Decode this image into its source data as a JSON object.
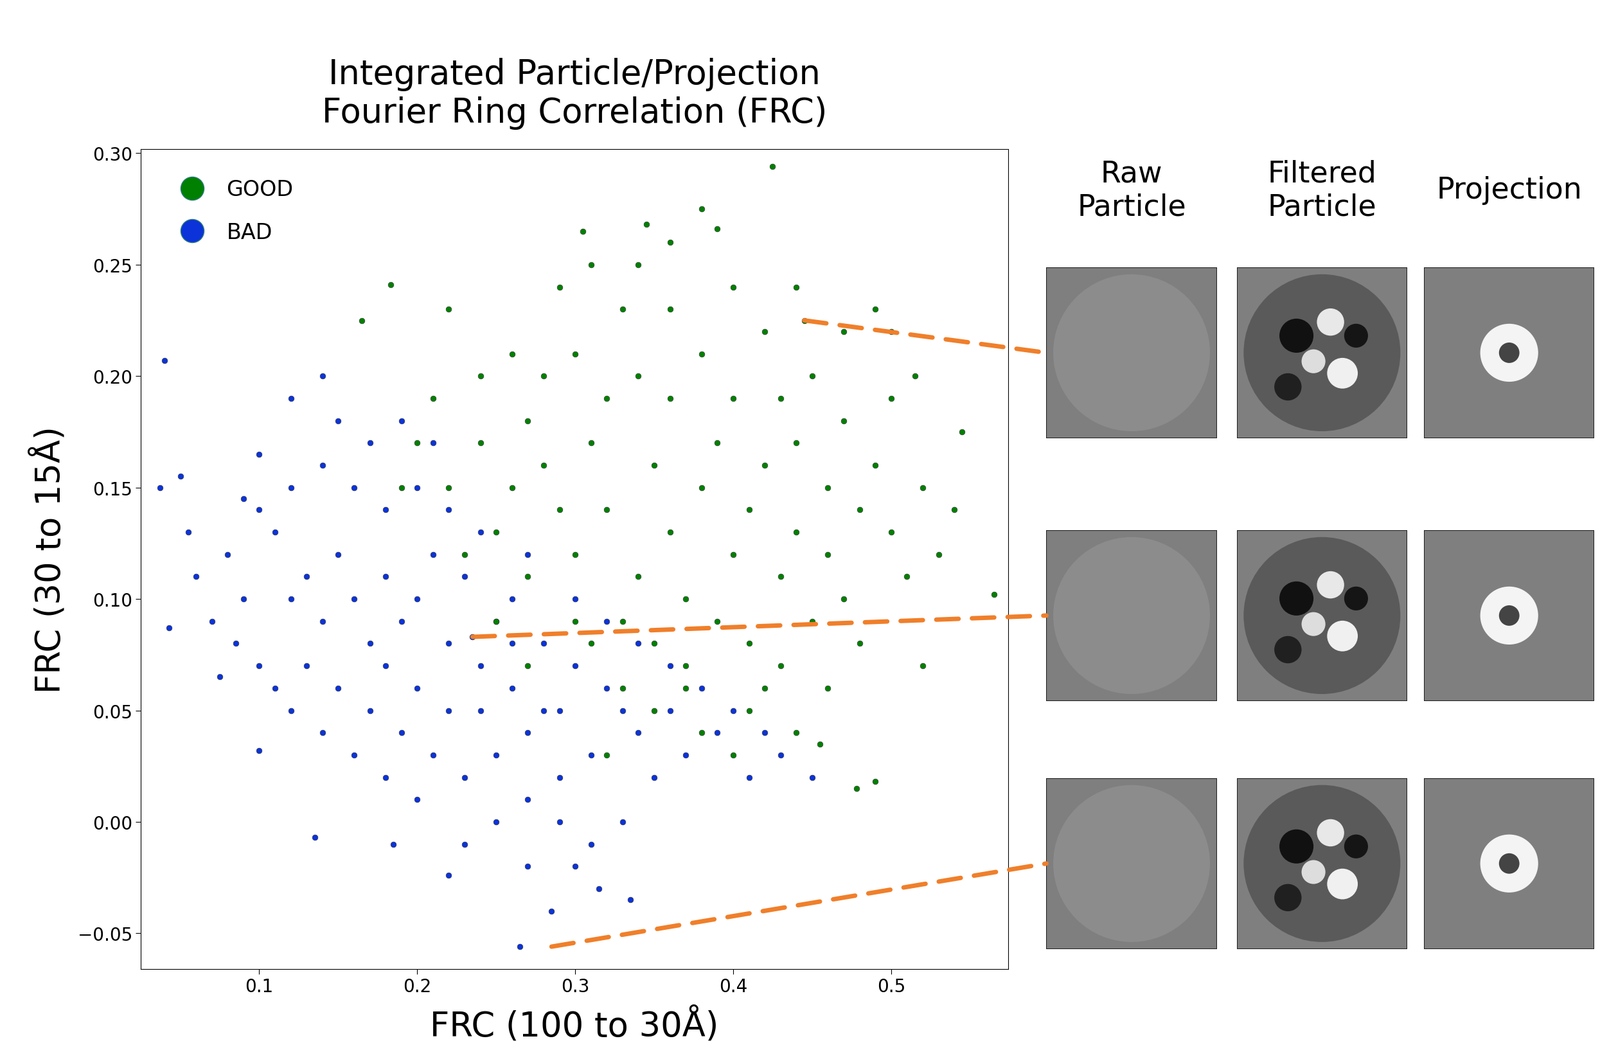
{
  "chart_data": {
    "type": "scatter",
    "title": "Integrated Particle/Projection\nFourier Ring Correlation (FRC)",
    "x_label": "FRC (100 to 30Å)",
    "y_label": "FRC (30 to 15Å)",
    "xlim": [
      0.025,
      0.574
    ],
    "ylim": [
      -0.066,
      0.302
    ],
    "xticks": [
      0.1,
      0.2,
      0.3,
      0.4,
      0.5
    ],
    "yticks": [
      {
        "value": -0.05,
        "label": "−0.05"
      },
      {
        "value": 0.0,
        "label": "0.00"
      },
      {
        "value": 0.05,
        "label": "0.05"
      },
      {
        "value": 0.1,
        "label": "0.10"
      },
      {
        "value": 0.15,
        "label": "0.15"
      },
      {
        "value": 0.2,
        "label": "0.20"
      },
      {
        "value": 0.25,
        "label": "0.25"
      },
      {
        "value": 0.3,
        "label": "0.30"
      }
    ],
    "legend": "upper left",
    "series": [
      {
        "name": "BAD",
        "color": "#0b33d9",
        "marker": "o",
        "x": [
          0.2,
          0.22,
          0.24,
          0.26,
          0.28,
          0.25,
          0.23,
          0.21,
          0.19,
          0.18,
          0.17,
          0.16,
          0.15,
          0.14,
          0.13,
          0.12,
          0.11,
          0.13,
          0.15,
          0.17,
          0.19,
          0.21,
          0.23,
          0.25,
          0.27,
          0.29,
          0.31,
          0.33,
          0.3,
          0.32,
          0.34,
          0.36,
          0.35,
          0.37,
          0.39,
          0.38,
          0.27,
          0.29,
          0.31,
          0.25,
          0.23,
          0.27,
          0.33,
          0.3,
          0.2,
          0.18,
          0.16,
          0.14,
          0.12,
          0.1,
          0.09,
          0.08,
          0.1,
          0.12,
          0.14,
          0.16,
          0.18,
          0.2,
          0.22,
          0.17,
          0.19,
          0.15,
          0.21,
          0.24,
          0.26,
          0.28,
          0.3,
          0.27,
          0.29,
          0.24,
          0.22,
          0.2,
          0.18,
          0.26,
          0.32,
          0.34,
          0.36,
          0.4,
          0.42,
          0.41,
          0.04,
          0.037,
          0.05,
          0.043,
          0.055,
          0.075,
          0.1,
          0.135,
          0.265,
          0.285,
          0.335,
          0.315,
          0.185,
          0.22,
          0.43,
          0.45,
          0.12,
          0.14,
          0.1,
          0.09,
          0.235,
          0.06,
          0.07,
          0.085,
          0.11
        ],
        "y": [
          0.1,
          0.08,
          0.07,
          0.06,
          0.05,
          0.09,
          0.11,
          0.12,
          0.09,
          0.11,
          0.08,
          0.1,
          0.12,
          0.09,
          0.11,
          0.1,
          0.13,
          0.07,
          0.06,
          0.05,
          0.04,
          0.03,
          0.02,
          0.03,
          0.04,
          0.02,
          0.03,
          0.05,
          0.07,
          0.06,
          0.04,
          0.05,
          0.02,
          0.03,
          0.04,
          0.06,
          0.01,
          0.0,
          -0.01,
          0.0,
          -0.01,
          -0.02,
          0.0,
          -0.02,
          0.01,
          0.02,
          0.03,
          0.04,
          0.05,
          0.07,
          0.1,
          0.12,
          0.14,
          0.15,
          0.16,
          0.15,
          0.14,
          0.15,
          0.14,
          0.17,
          0.18,
          0.18,
          0.17,
          0.13,
          0.1,
          0.08,
          0.1,
          0.12,
          0.05,
          0.05,
          0.05,
          0.06,
          0.07,
          0.08,
          0.09,
          0.08,
          0.07,
          0.05,
          0.04,
          0.02,
          0.207,
          0.15,
          0.155,
          0.087,
          0.13,
          0.065,
          0.032,
          -0.007,
          -0.056,
          -0.04,
          -0.035,
          -0.03,
          -0.01,
          -0.024,
          0.03,
          0.02,
          0.19,
          0.2,
          0.165,
          0.145,
          0.083,
          0.11,
          0.09,
          0.08,
          0.06
        ]
      },
      {
        "name": "GOOD",
        "color": "#008000",
        "marker": "o",
        "x": [
          0.3,
          0.32,
          0.34,
          0.36,
          0.38,
          0.4,
          0.35,
          0.33,
          0.37,
          0.39,
          0.41,
          0.43,
          0.31,
          0.29,
          0.27,
          0.42,
          0.44,
          0.46,
          0.36,
          0.34,
          0.38,
          0.32,
          0.4,
          0.3,
          0.28,
          0.26,
          0.25,
          0.24,
          0.22,
          0.21,
          0.23,
          0.35,
          0.37,
          0.39,
          0.41,
          0.43,
          0.45,
          0.47,
          0.48,
          0.5,
          0.49,
          0.47,
          0.45,
          0.43,
          0.42,
          0.36,
          0.33,
          0.3,
          0.28,
          0.27,
          0.35,
          0.38,
          0.41,
          0.44,
          0.46,
          0.4,
          0.42,
          0.37,
          0.33,
          0.31,
          0.52,
          0.51,
          0.53,
          0.54,
          0.5,
          0.48,
          0.46,
          0.44,
          0.26,
          0.24,
          0.2,
          0.19,
          0.22,
          0.29,
          0.31,
          0.34,
          0.36,
          0.4,
          0.44,
          0.47,
          0.425,
          0.38,
          0.345,
          0.39,
          0.305,
          0.183,
          0.165,
          0.565,
          0.478,
          0.49,
          0.545,
          0.49,
          0.5,
          0.445,
          0.32,
          0.455,
          0.52,
          0.515,
          0.27,
          0.25
        ],
        "y": [
          0.12,
          0.14,
          0.11,
          0.13,
          0.15,
          0.12,
          0.16,
          0.09,
          0.1,
          0.17,
          0.14,
          0.11,
          0.17,
          0.14,
          0.11,
          0.16,
          0.13,
          0.12,
          0.19,
          0.2,
          0.21,
          0.19,
          0.19,
          0.09,
          0.16,
          0.15,
          0.13,
          0.17,
          0.15,
          0.19,
          0.12,
          0.08,
          0.07,
          0.09,
          0.08,
          0.07,
          0.09,
          0.1,
          0.14,
          0.13,
          0.16,
          0.18,
          0.2,
          0.19,
          0.22,
          0.23,
          0.23,
          0.21,
          0.2,
          0.18,
          0.05,
          0.04,
          0.05,
          0.04,
          0.06,
          0.03,
          0.06,
          0.06,
          0.06,
          0.08,
          0.15,
          0.11,
          0.12,
          0.14,
          0.19,
          0.08,
          0.15,
          0.17,
          0.21,
          0.2,
          0.17,
          0.15,
          0.23,
          0.24,
          0.25,
          0.25,
          0.26,
          0.24,
          0.24,
          0.22,
          0.294,
          0.275,
          0.268,
          0.266,
          0.265,
          0.241,
          0.225,
          0.102,
          0.015,
          0.018,
          0.175,
          0.23,
          0.22,
          0.225,
          0.03,
          0.035,
          0.07,
          0.2,
          0.07,
          0.09
        ]
      }
    ],
    "legend_order": [
      "GOOD",
      "BAD"
    ],
    "highlights": [
      {
        "x": 0.445,
        "y": 0.225
      },
      {
        "x": 0.235,
        "y": 0.083
      },
      {
        "x": 0.285,
        "y": -0.056
      }
    ]
  },
  "panels": {
    "column_titles": [
      "Raw\nParticle",
      "Filtered\nParticle",
      "Projection"
    ]
  }
}
